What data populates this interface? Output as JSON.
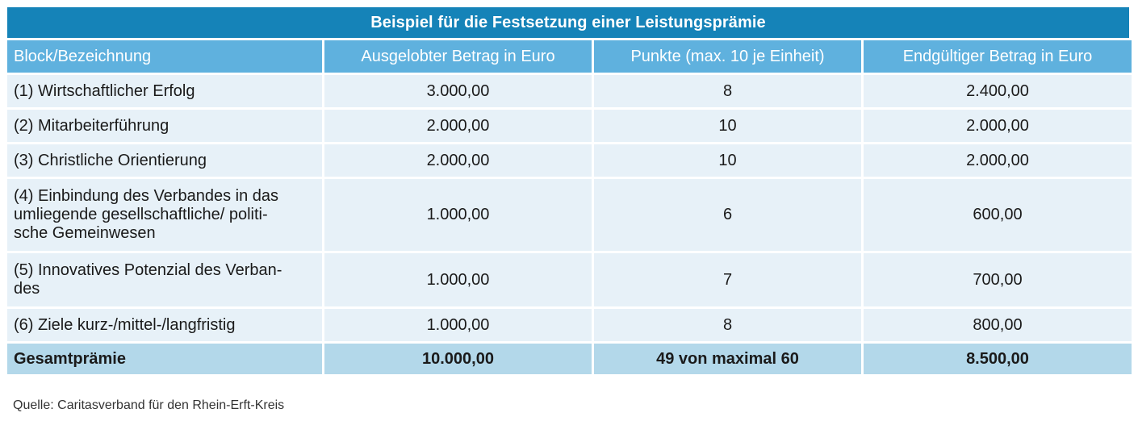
{
  "title": "Beispiel für die Festsetzung einer Leistungsprämie",
  "headers": [
    "Block/Bezeichnung",
    "Ausgelobter Betrag in Euro",
    "Punkte (max. 10 je Einheit)",
    "Endgültiger Betrag in Euro"
  ],
  "rows": [
    {
      "block": "(1) Wirtschaftlicher Erfolg",
      "betrag": "3.000,00",
      "punkte": "8",
      "endbetrag": "2.400,00"
    },
    {
      "block": "(2) Mitarbeiterführung",
      "betrag": "2.000,00",
      "punkte": "10",
      "endbetrag": "2.000,00"
    },
    {
      "block": "(3) Christliche Orientierung",
      "betrag": "2.000,00",
      "punkte": "10",
      "endbetrag": "2.000,00"
    },
    {
      "block_lines": [
        "(4) Einbindung des Verbandes in das",
        "umliegende gesellschaftliche/ politi-",
        "sche Gemeinwesen"
      ],
      "betrag": "1.000,00",
      "punkte": "6",
      "endbetrag": "600,00"
    },
    {
      "block_lines": [
        "(5) Innovatives Potenzial des Verban-",
        "des"
      ],
      "betrag": "1.000,00",
      "punkte": "7",
      "endbetrag": "700,00"
    },
    {
      "block": "(6) Ziele kurz-/mittel-/langfristig",
      "betrag": "1.000,00",
      "punkte": "8",
      "endbetrag": "800,00"
    }
  ],
  "total": {
    "label": "Gesamtprämie",
    "betrag": "10.000,00",
    "punkte": "49 von maximal 60",
    "endbetrag": "8.500,00"
  },
  "source": "Quelle: Caritasverband für den Rhein-Erft-Kreis"
}
